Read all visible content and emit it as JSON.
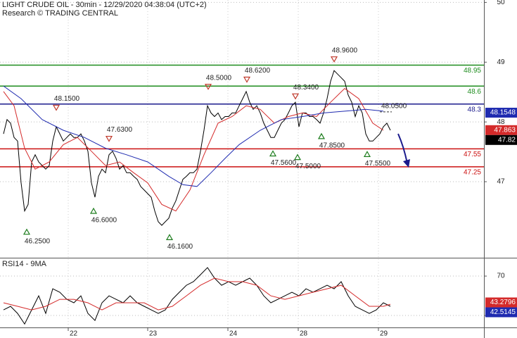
{
  "chart_data": [
    {
      "type": "line",
      "title": "LIGHT CRUDE OIL - 30min - 12/29/2020 04:38:04 (UTC+2)",
      "subtitle": "Research © TRADING CENTRAL",
      "x": [
        0,
        1,
        2,
        3,
        4,
        5,
        6,
        7,
        8,
        9,
        10,
        11,
        12,
        13,
        14,
        15,
        16,
        17,
        18,
        19,
        20,
        21,
        22,
        23,
        24,
        25,
        26,
        27,
        28,
        29,
        30,
        31,
        32,
        33,
        34,
        35,
        36,
        37,
        38,
        39,
        40,
        41,
        42,
        43,
        44,
        45,
        46,
        47,
        48,
        49,
        50,
        51,
        52,
        53,
        54,
        55,
        56,
        57,
        58,
        59,
        60,
        61,
        62,
        63,
        64,
        65,
        66,
        67,
        68,
        69,
        70,
        71,
        72,
        73,
        74,
        75,
        76,
        77,
        78,
        79,
        80,
        81,
        82,
        83,
        84,
        85,
        86,
        87,
        88,
        89,
        90,
        91,
        92,
        93,
        94,
        95,
        96,
        97,
        98,
        99,
        100,
        101,
        102,
        103,
        104,
        105,
        106,
        107,
        108,
        109,
        110
      ],
      "xlim": [
        -1,
        136.6
      ],
      "ylim": [
        45.74,
        50.04
      ],
      "yticks": [
        47,
        48,
        49,
        50
      ],
      "grid": true,
      "series": [
        {
          "color": "#000000",
          "values": [
            47.8,
            48.04,
            47.98,
            47.74,
            47.68,
            46.98,
            46.51,
            46.62,
            47.33,
            47.45,
            47.33,
            47.27,
            47.21,
            47.27,
            47.68,
            47.92,
            47.8,
            47.68,
            47.74,
            47.8,
            47.74,
            47.74,
            47.8,
            47.68,
            47.51,
            46.98,
            46.74,
            47.09,
            47.21,
            47.15,
            47.45,
            47.51,
            47.39,
            47.21,
            47.27,
            47.15,
            47.15,
            47.09,
            47.04,
            46.92,
            46.86,
            46.8,
            46.74,
            46.51,
            46.33,
            46.27,
            46.33,
            46.39,
            46.56,
            46.68,
            46.86,
            47.04,
            47.09,
            47.15,
            47.15,
            47.21,
            47.51,
            47.86,
            48.27,
            48.15,
            48.09,
            48.15,
            48.04,
            48.09,
            48.09,
            48.15,
            48.15,
            48.27,
            48.39,
            48.51,
            48.33,
            48.21,
            48.27,
            48.15,
            47.98,
            47.86,
            47.74,
            47.74,
            47.86,
            47.98,
            48.04,
            48.15,
            48.27,
            48.33,
            47.92,
            48.15,
            48.15,
            48.09,
            48.09,
            48.04,
            47.98,
            48.15,
            48.39,
            48.68,
            48.86,
            48.8,
            48.74,
            48.68,
            48.45,
            48.33,
            48.09,
            48.27,
            48.15,
            47.8,
            47.68,
            47.68,
            47.74,
            47.8,
            47.92,
            47.98,
            47.86
          ]
        },
        {
          "color": "#d42a2a",
          "x": [
            0,
            3,
            6,
            9,
            13,
            17,
            21,
            25,
            29,
            33,
            37,
            41,
            45,
            49,
            53,
            57,
            61,
            65,
            69,
            73,
            77,
            81,
            85,
            89,
            93,
            97,
            101,
            105,
            108
          ],
          "values": [
            48.51,
            48.27,
            47.56,
            47.21,
            47.33,
            47.62,
            47.74,
            47.51,
            47.27,
            47.33,
            47.15,
            46.98,
            46.62,
            46.51,
            46.86,
            47.45,
            47.98,
            48.09,
            48.27,
            48.21,
            47.98,
            48.09,
            48.15,
            48.09,
            48.33,
            48.56,
            48.39,
            47.98,
            47.86
          ]
        },
        {
          "color": "#1f2bb0",
          "x": [
            0,
            5,
            11,
            17,
            23,
            29,
            35,
            41,
            47,
            51,
            55,
            59,
            63,
            67,
            73,
            79,
            85,
            91,
            97,
            103,
            108
          ],
          "values": [
            48.6,
            48.39,
            48.04,
            47.86,
            47.74,
            47.56,
            47.45,
            47.33,
            47.09,
            46.95,
            46.92,
            47.15,
            47.39,
            47.62,
            47.86,
            48.04,
            48.09,
            48.15,
            48.18,
            48.21,
            48.18
          ]
        }
      ],
      "levels": [
        {
          "value": 48.95,
          "color": "#1e8c1e"
        },
        {
          "value": 48.6,
          "color": "#1e8c1e"
        },
        {
          "value": 48.3,
          "color": "#1a1a8c"
        },
        {
          "value": 47.55,
          "color": "#cc1111"
        },
        {
          "value": 47.25,
          "color": "#cc1111"
        }
      ],
      "annotations": [
        {
          "x": 6.6,
          "value": 46.25,
          "label": "46.2500",
          "direction": "up"
        },
        {
          "x": 15,
          "value": 48.15,
          "label": "48.1500",
          "direction": "down"
        },
        {
          "x": 25.6,
          "value": 46.6,
          "label": "46.6000",
          "direction": "up"
        },
        {
          "x": 30,
          "value": 47.63,
          "label": "47.6300",
          "direction": "down"
        },
        {
          "x": 47.2,
          "value": 46.16,
          "label": "46.1600",
          "direction": "up"
        },
        {
          "x": 58.2,
          "value": 48.5,
          "label": "48.5000",
          "direction": "down"
        },
        {
          "x": 69.2,
          "value": 48.62,
          "label": "48.6200",
          "direction": "down"
        },
        {
          "x": 76.6,
          "value": 47.56,
          "label": "47.5600",
          "direction": "up"
        },
        {
          "x": 83,
          "value": 48.34,
          "label": "48.3400",
          "direction": "down"
        },
        {
          "x": 83.6,
          "value": 47.5,
          "label": "47.5000",
          "direction": "up"
        },
        {
          "x": 90.4,
          "value": 47.85,
          "label": "47.8500",
          "direction": "up"
        },
        {
          "x": 94,
          "value": 48.96,
          "label": "48.9600",
          "direction": "down"
        },
        {
          "x": 103.4,
          "value": 47.55,
          "label": "47.5500",
          "direction": "up"
        }
      ],
      "target": {
        "x": [
          107,
          110.4
        ],
        "value": 48.05,
        "label": "48.0500"
      },
      "price_labels": [
        {
          "value": 48.1548,
          "color": "#1f2bb0"
        },
        {
          "value": 47.863,
          "color": "#d42a2a"
        },
        {
          "value": 47.82,
          "color": "#000000"
        }
      ]
    },
    {
      "type": "line",
      "title": "RSI14 - 9MA",
      "x": [
        0,
        2,
        4,
        6,
        8,
        10,
        12,
        14,
        16,
        18,
        20,
        22,
        24,
        26,
        28,
        30,
        32,
        34,
        36,
        38,
        40,
        42,
        44,
        46,
        48,
        50,
        52,
        54,
        56,
        58,
        60,
        62,
        64,
        66,
        68,
        70,
        72,
        74,
        76,
        78,
        80,
        82,
        84,
        86,
        88,
        90,
        92,
        94,
        96,
        98,
        100,
        102,
        104,
        106,
        108,
        110
      ],
      "xlim": [
        -1,
        136.6
      ],
      "xticks": [
        {
          "value": 18.4,
          "label": "22"
        },
        {
          "value": 41,
          "label": "23"
        },
        {
          "value": 63.8,
          "label": "24"
        },
        {
          "value": 83.8,
          "label": "28"
        },
        {
          "value": 106.6,
          "label": "29"
        }
      ],
      "ylim": [
        17.9,
        87.9
      ],
      "yticks": [
        30,
        70
      ],
      "series": [
        {
          "color": "#000000",
          "values": [
            35.7,
            39.3,
            32.1,
            21.4,
            35.7,
            50.0,
            32.1,
            57.1,
            53.6,
            46.4,
            42.9,
            50.0,
            32.1,
            25.0,
            42.9,
            50.0,
            46.4,
            42.9,
            50.0,
            42.9,
            39.3,
            35.7,
            32.1,
            35.7,
            46.4,
            53.6,
            60.7,
            64.3,
            71.4,
            78.6,
            67.9,
            60.7,
            64.3,
            60.7,
            64.3,
            67.9,
            60.7,
            50.0,
            42.9,
            46.4,
            50.0,
            53.6,
            50.0,
            57.1,
            53.6,
            57.1,
            60.7,
            57.1,
            64.3,
            50.0,
            39.3,
            35.7,
            32.1,
            35.7,
            42.9,
            39.3
          ]
        },
        {
          "color": "#d42a2a",
          "x": [
            0,
            4,
            8,
            12,
            16,
            20,
            24,
            28,
            32,
            36,
            40,
            44,
            48,
            52,
            56,
            60,
            64,
            68,
            72,
            76,
            80,
            84,
            88,
            92,
            96,
            100,
            104,
            108,
            110
          ],
          "values": [
            42.9,
            39.3,
            35.7,
            39.3,
            46.4,
            46.4,
            42.9,
            35.7,
            42.9,
            42.9,
            42.9,
            35.7,
            39.3,
            50.0,
            60.7,
            67.9,
            64.3,
            64.3,
            60.7,
            50.0,
            46.4,
            50.0,
            53.6,
            57.1,
            60.7,
            50.0,
            39.3,
            39.3,
            41.4
          ]
        }
      ],
      "current_labels": [
        {
          "value": 43.2796,
          "color": "#d42a2a"
        },
        {
          "value": 42.5145,
          "color": "#1f2bb0"
        }
      ]
    }
  ]
}
